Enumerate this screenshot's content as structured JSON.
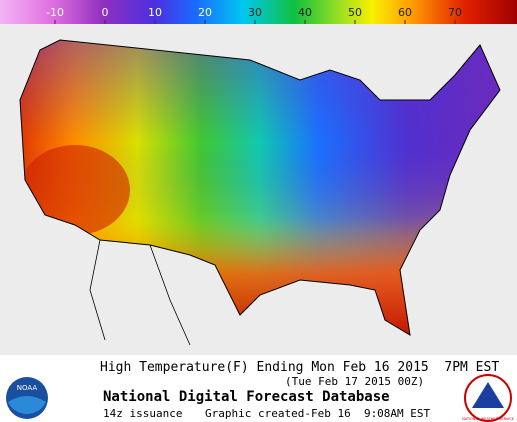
{
  "legend": {
    "ticks": [
      -10,
      0,
      10,
      20,
      30,
      40,
      50,
      60,
      70
    ]
  },
  "caption": {
    "title": "High Temperature(F) Ending Mon Feb 16 2015  7PM EST",
    "valid": "(Tue Feb 17 2015 00Z)",
    "product": "National Digital Forecast Database",
    "issuance": "14z issuance",
    "created": "Graphic created-Feb 16  9:08AM EST"
  },
  "logos": {
    "noaa": "NOAA",
    "nws": "NATIONAL WEATHER SERVICE"
  }
}
